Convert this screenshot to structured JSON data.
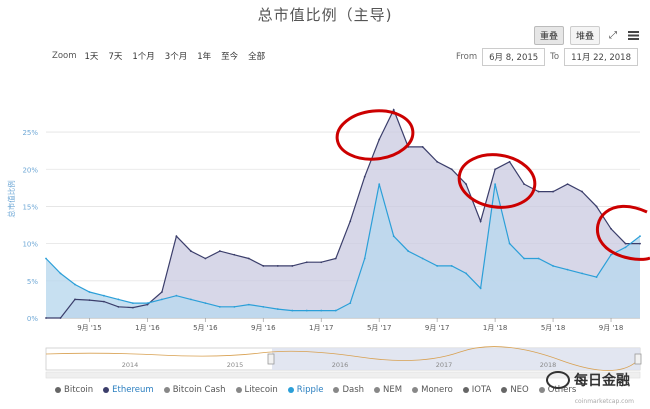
{
  "header": {
    "title": "总市值比例（主导)",
    "view_buttons": [
      "重叠",
      "堆叠"
    ],
    "active_view": "重叠"
  },
  "zoom": {
    "label": "Zoom",
    "options": [
      "1天",
      "7天",
      "1个月",
      "3个月",
      "1年",
      "至今",
      "全部"
    ]
  },
  "range": {
    "from_label": "From",
    "from_value": "6月 8, 2015",
    "to_label": "To",
    "to_value": "11月 22, 2018"
  },
  "navigator": {
    "years": [
      "2014",
      "2015",
      "2016",
      "2017",
      "2018"
    ]
  },
  "watermark": {
    "text": "每日金融",
    "credit": "coinmarketcap.com"
  },
  "colors": {
    "ethereum": "#3b3e6b",
    "ripple": "#2b9fd8",
    "annotation": "#cc0000"
  },
  "chart_data": {
    "type": "area",
    "ylabel": "总市值比例",
    "ylim": [
      0,
      32
    ],
    "yticks": [
      "0%",
      "5%",
      "10%",
      "15%",
      "20%",
      "25%"
    ],
    "xticks": [
      "9月 '15",
      "1月 '16",
      "5月 '16",
      "9月 '16",
      "1月 '17",
      "5月 '17",
      "9月 '17",
      "1月 '18",
      "5月 '18",
      "9月 '18"
    ],
    "x": [
      "2015-06",
      "2015-07",
      "2015-08",
      "2015-09",
      "2015-10",
      "2015-11",
      "2015-12",
      "2016-01",
      "2016-02",
      "2016-03",
      "2016-04",
      "2016-05",
      "2016-06",
      "2016-07",
      "2016-08",
      "2016-09",
      "2016-10",
      "2016-11",
      "2016-12",
      "2017-01",
      "2017-02",
      "2017-03",
      "2017-04",
      "2017-05",
      "2017-06",
      "2017-07",
      "2017-08",
      "2017-09",
      "2017-10",
      "2017-11",
      "2017-12",
      "2018-01",
      "2018-02",
      "2018-03",
      "2018-04",
      "2018-05",
      "2018-06",
      "2018-07",
      "2018-08",
      "2018-09",
      "2018-10",
      "2018-11"
    ],
    "series": [
      {
        "name": "Ethereum",
        "values": [
          0,
          0,
          2.5,
          2.4,
          2.2,
          1.5,
          1.4,
          1.8,
          3.5,
          11,
          9,
          8,
          9,
          8.5,
          8,
          7,
          7,
          7,
          7.5,
          7.5,
          8,
          13,
          19,
          24,
          28,
          23,
          23,
          21,
          20,
          18,
          13,
          20,
          21,
          18,
          17,
          17,
          18,
          17,
          15,
          12,
          10,
          10
        ]
      },
      {
        "name": "Ripple",
        "values": [
          8,
          6,
          4.5,
          3.5,
          3,
          2.5,
          2,
          2,
          2.5,
          3,
          2.5,
          2,
          1.5,
          1.5,
          1.8,
          1.5,
          1.2,
          1,
          1,
          1,
          1,
          2,
          8,
          18,
          11,
          9,
          8,
          7,
          7,
          6,
          4,
          18,
          10,
          8,
          8,
          7,
          6.5,
          6,
          5.5,
          8.5,
          9.5,
          11
        ]
      }
    ],
    "legend": [
      "Bitcoin",
      "Ethereum",
      "Bitcoin Cash",
      "Litecoin",
      "Ripple",
      "Dash",
      "NEM",
      "Monero",
      "IOTA",
      "NEO",
      "Others"
    ],
    "legend_colors": [
      "#666666",
      "#3b3e6b",
      "#888888",
      "#888888",
      "#2b9fd8",
      "#888888",
      "#888888",
      "#888888",
      "#666666",
      "#666666",
      "#888888"
    ],
    "legend_placement": "bottom"
  }
}
